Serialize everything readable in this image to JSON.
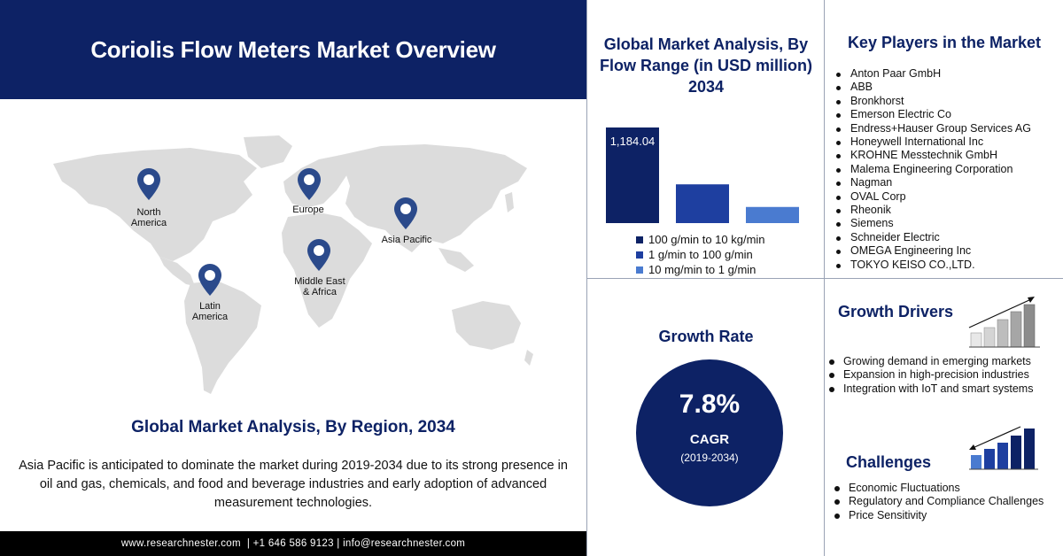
{
  "header": {
    "title": "Coriolis Flow Meters Market Overview"
  },
  "map": {
    "regions": [
      {
        "id": "north-america",
        "line1": "North",
        "line2": "America"
      },
      {
        "id": "europe",
        "line1": "Europe",
        "line2": ""
      },
      {
        "id": "asia-pacific",
        "line1": "Asia Pacific",
        "line2": ""
      },
      {
        "id": "middle-east-africa",
        "line1": "Middle East",
        "line2": "& Africa"
      },
      {
        "id": "latin-america",
        "line1": "Latin",
        "line2": "America"
      }
    ],
    "pin_color": "#2b4a8b",
    "land_color": "#dcdcdc"
  },
  "region_section": {
    "title": "Global Market Analysis, By Region, 2034",
    "description": "Asia Pacific is anticipated to dominate the market during 2019-2034 due to its strong presence in oil and gas, chemicals, and food and beverage industries and early adoption of advanced measurement technologies."
  },
  "footer": {
    "text": "www.researchnester.com  | +1 646 586 9123 | info@researchnester.com"
  },
  "chart_data": {
    "type": "bar",
    "title": "Global Market Analysis, By Flow Range (in USD million) 2034",
    "categories": [
      "100 g/min to 10 kg/min",
      "1 g/min to 100 g/min",
      "10 mg/min to 1 g/min"
    ],
    "values": [
      1184.04,
      480,
      200
    ],
    "data_labels": [
      "1,184.04",
      "",
      ""
    ],
    "colors": [
      "#0d2265",
      "#1e3fa0",
      "#4a7bd0"
    ],
    "ylim": [
      0,
      1184.04
    ],
    "legend_position": "bottom"
  },
  "key_players": {
    "title": "Key Players in the Market",
    "items": [
      "Anton Paar GmbH",
      "ABB",
      "Bronkhorst",
      "Emerson Electric Co",
      "Endress+Hauser Group Services AG",
      "Honeywell International Inc",
      "KROHNE Messtechnik GmbH",
      "Malema Engineering Corporation",
      "Nagman",
      "OVAL Corp",
      "Rheonik",
      "Siemens",
      "Schneider Electric",
      "OMEGA Engineering Inc",
      "TOKYO KEISO CO.,LTD."
    ]
  },
  "growth_rate": {
    "title": "Growth Rate",
    "value": "7.8%",
    "label": "CAGR",
    "period": "(2019-2034)"
  },
  "growth_drivers": {
    "title": "Growth Drivers",
    "items": [
      "Growing demand in emerging markets",
      "Expansion in high-precision industries",
      "Integration with IoT and smart systems"
    ]
  },
  "challenges": {
    "title": "Challenges",
    "items": [
      "Economic Fluctuations",
      "Regulatory and Compliance Challenges",
      "Price Sensitivity"
    ]
  }
}
